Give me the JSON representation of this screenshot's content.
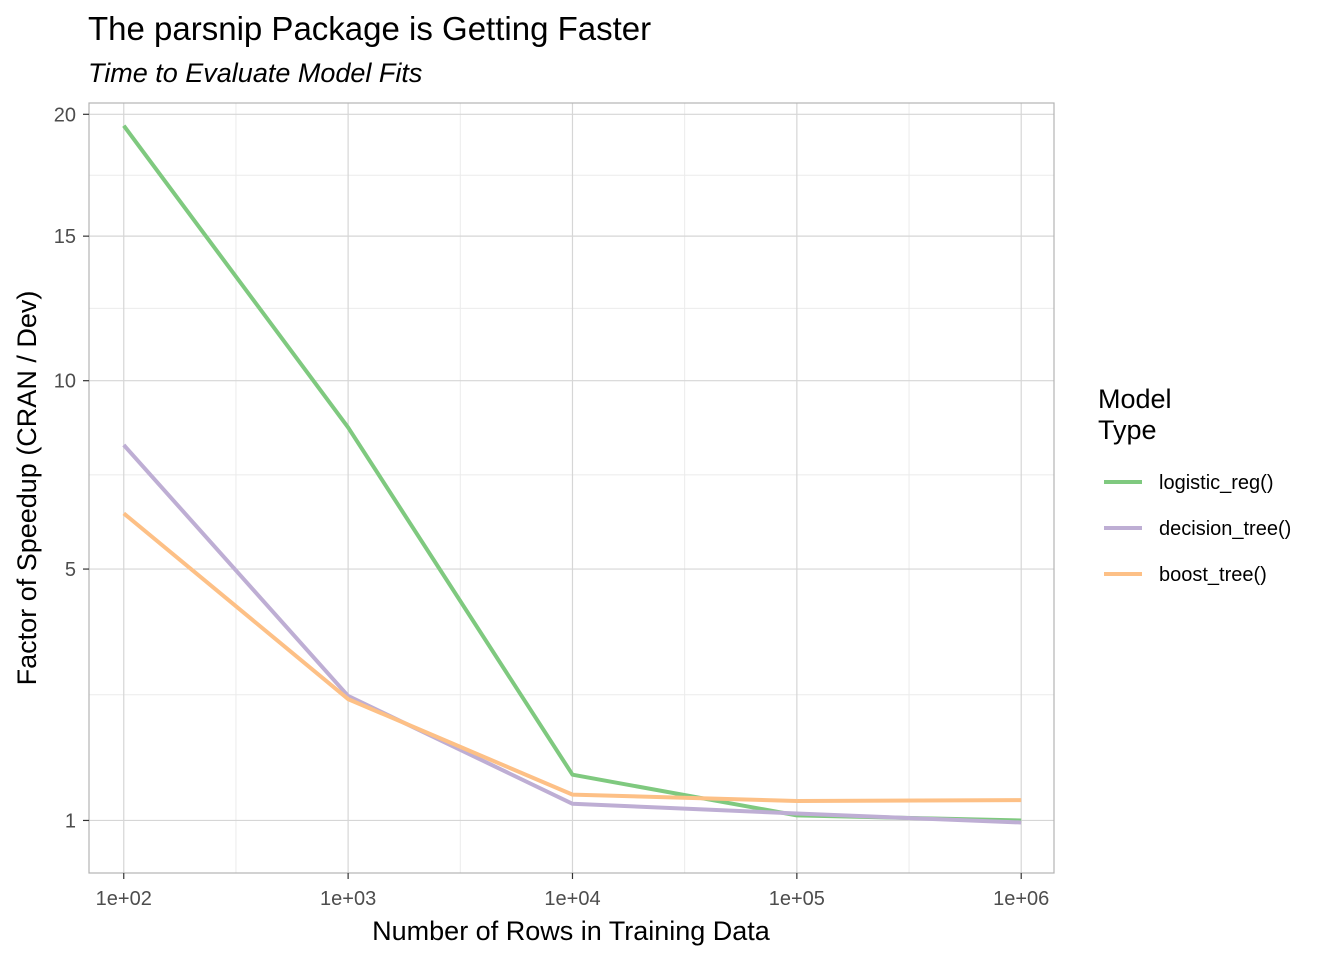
{
  "chart_data": {
    "type": "line",
    "title": "The parsnip Package is Getting Faster",
    "subtitle": "Time to Evaluate Model Fits",
    "xlabel": "Number of Rows in Training Data",
    "ylabel": "Factor of Speedup (CRAN / Dev)",
    "x_scale": "log10",
    "y_scale": "sqrt",
    "x": [
      100,
      1000,
      10000,
      100000,
      1000000
    ],
    "x_tick_values": [
      100,
      1000,
      10000,
      100000,
      1000000
    ],
    "x_tick_labels": [
      "1e+02",
      "1e+03",
      "1e+04",
      "1e+05",
      "1e+06"
    ],
    "y_tick_values": [
      1,
      5,
      10,
      15,
      20
    ],
    "y_tick_labels": [
      "1",
      "5",
      "10",
      "15",
      "20"
    ],
    "xlim": [
      70,
      1400000
    ],
    "ylim": [
      0.55,
      20.5
    ],
    "grid": true,
    "legend": {
      "title_lines": [
        "Model",
        "Type"
      ],
      "placement": "right"
    },
    "series": [
      {
        "name": "logistic_reg()",
        "color": "#7fc97f",
        "values": [
          19.5,
          8.6,
          1.5,
          1.05,
          1.0
        ]
      },
      {
        "name": "decision_tree()",
        "color": "#beaed4",
        "values": [
          8.1,
          2.6,
          1.17,
          1.07,
          0.98
        ]
      },
      {
        "name": "boost_tree()",
        "color": "#fdc086",
        "values": [
          6.3,
          2.55,
          1.27,
          1.2,
          1.21
        ]
      }
    ]
  }
}
